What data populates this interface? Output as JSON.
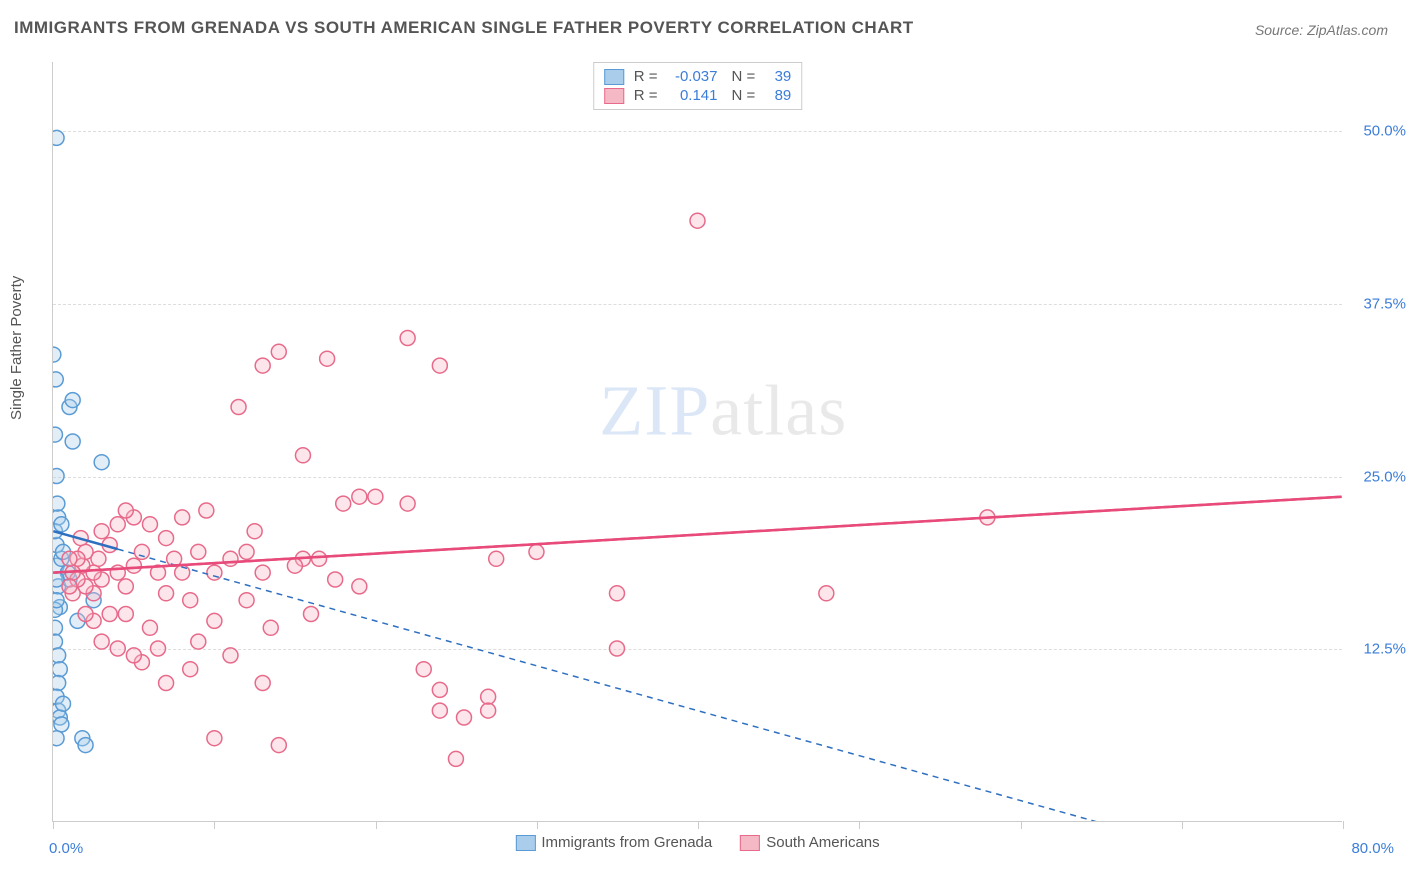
{
  "title": "IMMIGRANTS FROM GRENADA VS SOUTH AMERICAN SINGLE FATHER POVERTY CORRELATION CHART",
  "source_label": "Source:",
  "source_name": "ZipAtlas.com",
  "watermark_a": "ZIP",
  "watermark_b": "atlas",
  "y_axis_label": "Single Father Poverty",
  "chart": {
    "type": "scatter",
    "x_min": 0.0,
    "x_max": 80.0,
    "y_min": 0.0,
    "y_max": 55.0,
    "x_tick_label_min": "0.0%",
    "x_tick_label_max": "80.0%",
    "y_ticks": [
      12.5,
      25.0,
      37.5,
      50.0
    ],
    "y_tick_labels": [
      "12.5%",
      "25.0%",
      "37.5%",
      "50.0%"
    ],
    "x_tick_positions_pct": [
      0,
      12.5,
      25,
      37.5,
      50,
      62.5,
      75,
      87.5,
      100
    ],
    "plot_background": "#ffffff",
    "grid_color": "#dddddd",
    "axis_color": "#cccccc",
    "marker_radius": 7.5,
    "series": [
      {
        "key": "grenada",
        "label": "Immigrants from Grenada",
        "fill": "#a9cdeb",
        "stroke": "#5a9bd5",
        "trend_color": "#2e6fc0",
        "trend_solid_end_x": 4.0,
        "trend_y_at_x0": 21.0,
        "trend_y_at_xmax": -5.0,
        "R_label": "R =",
        "R_value": "-0.037",
        "N_label": "N =",
        "N_value": "39",
        "points": [
          [
            0.2,
            49.5
          ],
          [
            0.0,
            33.8
          ],
          [
            0.3,
            22.0
          ],
          [
            1.0,
            30.0
          ],
          [
            1.2,
            30.5
          ],
          [
            1.2,
            27.5
          ],
          [
            0.2,
            25.0
          ],
          [
            3.0,
            26.0
          ],
          [
            0.3,
            17.0
          ],
          [
            0.2,
            18.5
          ],
          [
            0.5,
            19.0
          ],
          [
            0.2,
            20.0
          ],
          [
            0.4,
            15.5
          ],
          [
            0.1,
            14.0
          ],
          [
            0.1,
            13.0
          ],
          [
            0.3,
            12.0
          ],
          [
            0.4,
            11.0
          ],
          [
            0.3,
            10.0
          ],
          [
            0.2,
            9.0
          ],
          [
            0.3,
            8.0
          ],
          [
            0.4,
            7.5
          ],
          [
            0.5,
            7.0
          ],
          [
            0.2,
            6.0
          ],
          [
            1.8,
            6.0
          ],
          [
            2.0,
            5.5
          ],
          [
            0.1,
            15.3
          ],
          [
            0.2,
            16.0
          ],
          [
            2.5,
            16.0
          ],
          [
            1.0,
            17.5
          ],
          [
            1.5,
            14.5
          ],
          [
            0.6,
            19.5
          ],
          [
            0.1,
            21.0
          ],
          [
            0.9,
            18.0
          ],
          [
            0.1,
            28.0
          ],
          [
            0.15,
            32.0
          ],
          [
            0.5,
            21.5
          ],
          [
            0.25,
            23.0
          ],
          [
            0.6,
            8.5
          ],
          [
            0.2,
            17.5
          ]
        ]
      },
      {
        "key": "south_american",
        "label": "South Americans",
        "fill": "#f5b8c5",
        "stroke": "#e86a8a",
        "trend_color": "#e84a7a",
        "trend_solid_end_x": 80.0,
        "trend_y_at_x0": 18.0,
        "trend_y_at_xmax": 23.5,
        "R_label": "R =",
        "R_value": "0.141",
        "N_label": "N =",
        "N_value": "89",
        "points": [
          [
            40.0,
            43.5
          ],
          [
            58.0,
            22.0
          ],
          [
            48.0,
            16.5
          ],
          [
            35.0,
            16.5
          ],
          [
            35.0,
            12.5
          ],
          [
            30.0,
            19.5
          ],
          [
            27.5,
            19.0
          ],
          [
            27.0,
            9.0
          ],
          [
            27.0,
            8.0
          ],
          [
            25.5,
            7.5
          ],
          [
            24.0,
            8.0
          ],
          [
            24.0,
            9.5
          ],
          [
            24.0,
            33.0
          ],
          [
            25.0,
            4.5
          ],
          [
            23.0,
            11.0
          ],
          [
            22.0,
            35.0
          ],
          [
            22.0,
            23.0
          ],
          [
            20.0,
            23.5
          ],
          [
            19.0,
            23.5
          ],
          [
            18.0,
            23.0
          ],
          [
            17.0,
            33.5
          ],
          [
            16.0,
            15.0
          ],
          [
            15.5,
            19.0
          ],
          [
            15.0,
            18.5
          ],
          [
            15.5,
            26.5
          ],
          [
            14.0,
            34.0
          ],
          [
            13.0,
            18.0
          ],
          [
            13.0,
            10.0
          ],
          [
            12.0,
            16.0
          ],
          [
            12.0,
            19.5
          ],
          [
            11.5,
            30.0
          ],
          [
            11.0,
            19.0
          ],
          [
            10.0,
            18.0
          ],
          [
            10.0,
            14.5
          ],
          [
            10.0,
            6.0
          ],
          [
            9.5,
            22.5
          ],
          [
            9.0,
            13.0
          ],
          [
            8.5,
            11.0
          ],
          [
            8.5,
            16.0
          ],
          [
            8.0,
            22.0
          ],
          [
            7.5,
            19.0
          ],
          [
            7.0,
            16.5
          ],
          [
            7.0,
            10.0
          ],
          [
            6.5,
            18.0
          ],
          [
            6.0,
            21.5
          ],
          [
            6.0,
            14.0
          ],
          [
            5.5,
            11.5
          ],
          [
            5.0,
            18.5
          ],
          [
            5.0,
            12.0
          ],
          [
            5.0,
            22.0
          ],
          [
            4.5,
            22.5
          ],
          [
            4.5,
            17.0
          ],
          [
            4.0,
            18.0
          ],
          [
            4.0,
            21.5
          ],
          [
            4.0,
            12.5
          ],
          [
            3.5,
            20.0
          ],
          [
            3.5,
            15.0
          ],
          [
            3.0,
            17.5
          ],
          [
            3.0,
            21.0
          ],
          [
            3.0,
            13.0
          ],
          [
            2.8,
            19.0
          ],
          [
            2.5,
            18.0
          ],
          [
            2.5,
            14.5
          ],
          [
            2.5,
            16.5
          ],
          [
            2.0,
            17.0
          ],
          [
            2.0,
            19.5
          ],
          [
            2.0,
            15.0
          ],
          [
            1.8,
            18.5
          ],
          [
            1.7,
            20.5
          ],
          [
            1.5,
            17.5
          ],
          [
            1.5,
            19.0
          ],
          [
            1.2,
            18.0
          ],
          [
            1.2,
            16.5
          ],
          [
            1.0,
            19.0
          ],
          [
            1.0,
            17.0
          ],
          [
            4.5,
            15.0
          ],
          [
            5.5,
            19.5
          ],
          [
            6.5,
            12.5
          ],
          [
            7.0,
            20.5
          ],
          [
            8.0,
            18.0
          ],
          [
            9.0,
            19.5
          ],
          [
            11.0,
            12.0
          ],
          [
            12.5,
            21.0
          ],
          [
            13.5,
            14.0
          ],
          [
            14.0,
            5.5
          ],
          [
            13.0,
            33.0
          ],
          [
            16.5,
            19.0
          ],
          [
            17.5,
            17.5
          ],
          [
            19.0,
            17.0
          ]
        ]
      }
    ]
  }
}
